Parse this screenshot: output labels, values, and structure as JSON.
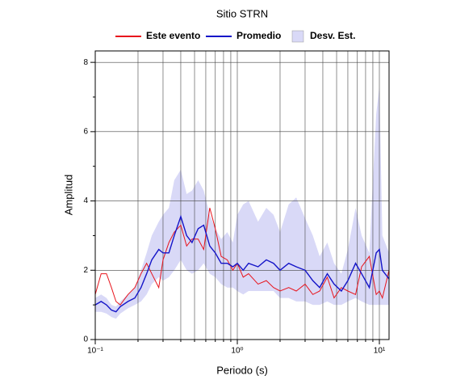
{
  "chart_data": {
    "type": "line",
    "title": "Sitio STRN",
    "xlabel": "Periodo (s)",
    "ylabel": "Amplitud",
    "xscale": "log",
    "xlim": [
      0.1,
      11.7
    ],
    "ylim": [
      0,
      8.33
    ],
    "xticks": [
      {
        "value": 0.1,
        "label": "10⁻¹"
      },
      {
        "value": 1,
        "label": "10⁰"
      },
      {
        "value": 10,
        "label": "10¹"
      }
    ],
    "xminor": [
      0.2,
      0.3,
      0.4,
      0.5,
      0.6,
      0.7,
      0.8,
      0.9,
      2,
      3,
      4,
      5,
      6,
      7,
      8,
      9
    ],
    "yticks": [
      0,
      2,
      4,
      6,
      8
    ],
    "yminor": [
      1,
      3,
      5,
      7
    ],
    "grid": true,
    "legend": "top",
    "x": [
      0.1,
      0.11,
      0.12,
      0.13,
      0.14,
      0.15,
      0.17,
      0.19,
      0.21,
      0.23,
      0.25,
      0.28,
      0.3,
      0.33,
      0.36,
      0.4,
      0.44,
      0.48,
      0.53,
      0.58,
      0.64,
      0.7,
      0.77,
      0.85,
      0.93,
      1.0,
      1.1,
      1.2,
      1.4,
      1.6,
      1.8,
      2.0,
      2.3,
      2.6,
      3.0,
      3.4,
      3.8,
      4.3,
      4.8,
      5.4,
      6,
      6.8,
      7.5,
      8.5,
      9.5,
      10,
      10.5,
      11.7
    ],
    "band": {
      "name": "Desv. Est.",
      "color": "#d9d9f7",
      "upper": [
        1.2,
        1.3,
        1.2,
        1.0,
        0.95,
        1.1,
        1.3,
        1.5,
        2.0,
        2.5,
        3.0,
        3.4,
        3.6,
        3.8,
        4.6,
        4.9,
        4.2,
        4.3,
        4.6,
        4.3,
        3.6,
        3.2,
        2.9,
        3.1,
        2.8,
        3.6,
        3.9,
        4.0,
        3.4,
        3.8,
        3.6,
        3.1,
        3.9,
        4.1,
        3.5,
        3.0,
        2.4,
        2.8,
        2.2,
        1.9,
        2.6,
        3.8,
        3.0,
        2.5,
        6.5,
        7.3,
        3.0,
        2.5
      ],
      "lower": [
        0.8,
        0.8,
        0.75,
        0.65,
        0.6,
        0.75,
        0.9,
        1.0,
        1.1,
        1.3,
        1.6,
        1.8,
        1.7,
        1.8,
        2.0,
        2.3,
        2.0,
        1.9,
        2.0,
        2.2,
        1.9,
        1.8,
        1.6,
        1.5,
        1.5,
        1.4,
        1.3,
        1.4,
        1.4,
        1.4,
        1.4,
        1.2,
        1.2,
        1.1,
        1.1,
        1.0,
        1.0,
        1.1,
        1.0,
        1.0,
        1.1,
        1.2,
        1.1,
        1.0,
        1.0,
        1.0,
        1.0,
        1.0
      ]
    },
    "series": [
      {
        "name": "Este evento",
        "color": "#e8141c",
        "values": [
          1.3,
          1.9,
          1.9,
          1.5,
          1.1,
          1.0,
          1.3,
          1.5,
          1.9,
          2.2,
          1.9,
          1.5,
          2.3,
          2.8,
          3.1,
          3.3,
          2.7,
          2.9,
          2.9,
          2.6,
          3.8,
          3.2,
          2.4,
          2.3,
          2.0,
          2.2,
          1.8,
          1.9,
          1.6,
          1.7,
          1.5,
          1.4,
          1.5,
          1.4,
          1.6,
          1.3,
          1.4,
          1.8,
          1.2,
          1.5,
          1.4,
          1.3,
          2.1,
          2.4,
          1.3,
          1.4,
          1.2,
          2.0
        ]
      },
      {
        "name": "Promedio",
        "color": "#1414c8",
        "values": [
          1.0,
          1.1,
          1.0,
          0.85,
          0.8,
          0.95,
          1.1,
          1.2,
          1.5,
          1.9,
          2.3,
          2.6,
          2.5,
          2.5,
          3.0,
          3.55,
          3.0,
          2.8,
          3.2,
          3.3,
          2.7,
          2.5,
          2.2,
          2.2,
          2.1,
          2.2,
          2.0,
          2.2,
          2.1,
          2.3,
          2.2,
          2.0,
          2.2,
          2.1,
          2.0,
          1.7,
          1.5,
          1.9,
          1.6,
          1.4,
          1.7,
          2.2,
          1.9,
          1.5,
          2.5,
          2.6,
          2.0,
          1.75
        ]
      }
    ]
  }
}
